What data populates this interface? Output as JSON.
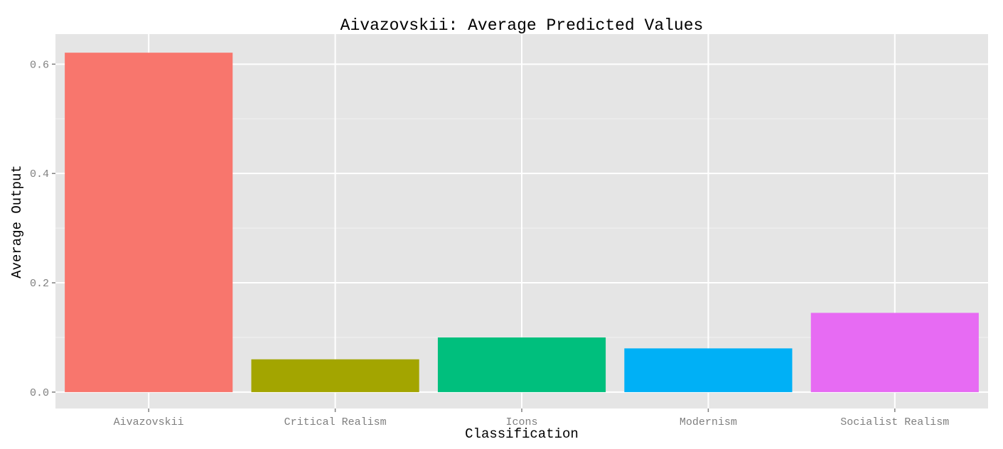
{
  "chart_data": {
    "type": "bar",
    "title": "Aivazovskii: Average Predicted Values",
    "xlabel": "Classification",
    "ylabel": "Average Output",
    "categories": [
      "Aivazovskii",
      "Critical Realism",
      "Icons",
      "Modernism",
      "Socialist Realism"
    ],
    "values": [
      0.621,
      0.06,
      0.1,
      0.08,
      0.145
    ],
    "colors": [
      "#F8766D",
      "#A3A500",
      "#00BF7D",
      "#00B0F6",
      "#E76BF3"
    ],
    "ylim": [
      -0.03,
      0.655
    ],
    "yticks": [
      0.0,
      0.2,
      0.4,
      0.6
    ],
    "ytick_labels": [
      "0.0",
      "0.2",
      "0.4",
      "0.6"
    ],
    "grid": true,
    "panel_background": "#E5E5E5"
  }
}
